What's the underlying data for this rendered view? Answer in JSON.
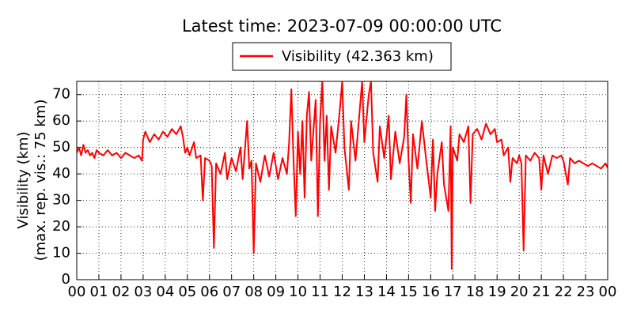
{
  "chart_data": {
    "type": "line",
    "title": "Latest time: 2023-07-09 00:00:00 UTC",
    "ylabel": [
      "Visibility (km)",
      "(max. rep. vis.: 75 km)"
    ],
    "xlim": [
      0,
      24
    ],
    "ylim": [
      0,
      75
    ],
    "yticks": [
      0,
      10,
      20,
      30,
      40,
      50,
      60,
      70
    ],
    "xticks": [
      {
        "value": 0,
        "label": "00"
      },
      {
        "value": 1,
        "label": "01"
      },
      {
        "value": 2,
        "label": "02"
      },
      {
        "value": 3,
        "label": "03"
      },
      {
        "value": 4,
        "label": "04"
      },
      {
        "value": 5,
        "label": "05"
      },
      {
        "value": 6,
        "label": "06"
      },
      {
        "value": 7,
        "label": "07"
      },
      {
        "value": 8,
        "label": "08"
      },
      {
        "value": 9,
        "label": "09"
      },
      {
        "value": 10,
        "label": "10"
      },
      {
        "value": 11,
        "label": "11"
      },
      {
        "value": 12,
        "label": "12"
      },
      {
        "value": 13,
        "label": "13"
      },
      {
        "value": 14,
        "label": "14"
      },
      {
        "value": 15,
        "label": "15"
      },
      {
        "value": 16,
        "label": "16"
      },
      {
        "value": 17,
        "label": "17"
      },
      {
        "value": 18,
        "label": "18"
      },
      {
        "value": 19,
        "label": "19"
      },
      {
        "value": 20,
        "label": "20"
      },
      {
        "value": 21,
        "label": "21"
      },
      {
        "value": 22,
        "label": "22"
      },
      {
        "value": 23,
        "label": "23"
      },
      {
        "value": 24,
        "label": "00"
      }
    ],
    "grid": true,
    "legend": "top",
    "x": [
      0.0,
      0.1,
      0.2,
      0.3,
      0.4,
      0.5,
      0.6,
      0.7,
      0.8,
      0.9,
      1.0,
      1.2,
      1.4,
      1.6,
      1.8,
      2.0,
      2.2,
      2.4,
      2.6,
      2.8,
      2.95,
      3.0,
      3.1,
      3.3,
      3.5,
      3.7,
      3.9,
      4.1,
      4.3,
      4.5,
      4.7,
      4.8,
      4.9,
      5.0,
      5.1,
      5.3,
      5.4,
      5.6,
      5.7,
      5.8,
      6.0,
      6.1,
      6.2,
      6.3,
      6.5,
      6.7,
      6.8,
      7.0,
      7.2,
      7.4,
      7.5,
      7.7,
      7.8,
      7.9,
      8.0,
      8.1,
      8.3,
      8.5,
      8.7,
      8.9,
      9.1,
      9.3,
      9.5,
      9.6,
      9.7,
      9.8,
      9.9,
      10.0,
      10.1,
      10.2,
      10.3,
      10.4,
      10.5,
      10.6,
      10.8,
      10.9,
      11.0,
      11.1,
      11.2,
      11.3,
      11.4,
      11.5,
      11.7,
      11.9,
      12.0,
      12.1,
      12.3,
      12.4,
      12.6,
      12.8,
      12.9,
      13.0,
      13.2,
      13.3,
      13.4,
      13.6,
      13.7,
      13.9,
      14.1,
      14.2,
      14.4,
      14.6,
      14.8,
      14.9,
      15.0,
      15.1,
      15.2,
      15.4,
      15.6,
      15.8,
      16.0,
      16.1,
      16.2,
      16.3,
      16.5,
      16.6,
      16.8,
      16.9,
      16.95,
      17.0,
      17.2,
      17.3,
      17.5,
      17.7,
      17.8,
      17.9,
      18.1,
      18.3,
      18.5,
      18.7,
      18.9,
      19.0,
      19.2,
      19.3,
      19.5,
      19.6,
      19.7,
      19.9,
      20.0,
      20.1,
      20.2,
      20.3,
      20.5,
      20.7,
      20.9,
      21.0,
      21.1,
      21.3,
      21.5,
      21.7,
      21.9,
      22.0,
      22.2,
      22.3,
      22.5,
      22.7,
      22.9,
      23.1,
      23.3,
      23.5,
      23.7,
      23.9,
      24.0
    ],
    "series": [
      {
        "name": "Visibility (42.363 km)",
        "color": "#ff0000",
        "values": [
          48,
          50,
          47,
          51,
          48,
          49,
          47,
          48,
          46,
          49,
          48,
          47,
          49,
          47,
          48,
          46,
          48,
          47,
          46,
          47,
          45,
          53,
          56,
          52,
          55,
          53,
          56,
          54,
          57,
          55,
          58,
          54,
          48,
          50,
          47,
          52,
          46,
          47,
          30,
          46,
          45,
          43,
          12,
          44,
          40,
          48,
          38,
          46,
          41,
          50,
          38,
          60,
          42,
          45,
          10,
          44,
          37,
          47,
          39,
          48,
          38,
          46,
          40,
          52,
          72,
          45,
          24,
          56,
          40,
          60,
          31,
          62,
          71,
          45,
          68,
          24,
          60,
          75,
          45,
          62,
          34,
          58,
          48,
          65,
          75,
          50,
          34,
          60,
          45,
          65,
          75,
          52,
          70,
          75,
          48,
          37,
          58,
          46,
          62,
          38,
          56,
          44,
          54,
          70,
          45,
          29,
          55,
          42,
          60,
          45,
          31,
          53,
          26,
          40,
          52,
          36,
          26,
          58,
          4,
          50,
          45,
          55,
          52,
          58,
          29,
          55,
          57,
          53,
          59,
          55,
          57,
          52,
          53,
          47,
          50,
          37,
          46,
          44,
          47,
          44,
          11,
          47,
          45,
          48,
          46,
          34,
          47,
          40,
          47,
          46,
          47,
          45,
          36,
          46,
          44,
          45,
          44,
          43,
          44,
          43,
          42,
          44,
          42.363
        ]
      }
    ]
  }
}
